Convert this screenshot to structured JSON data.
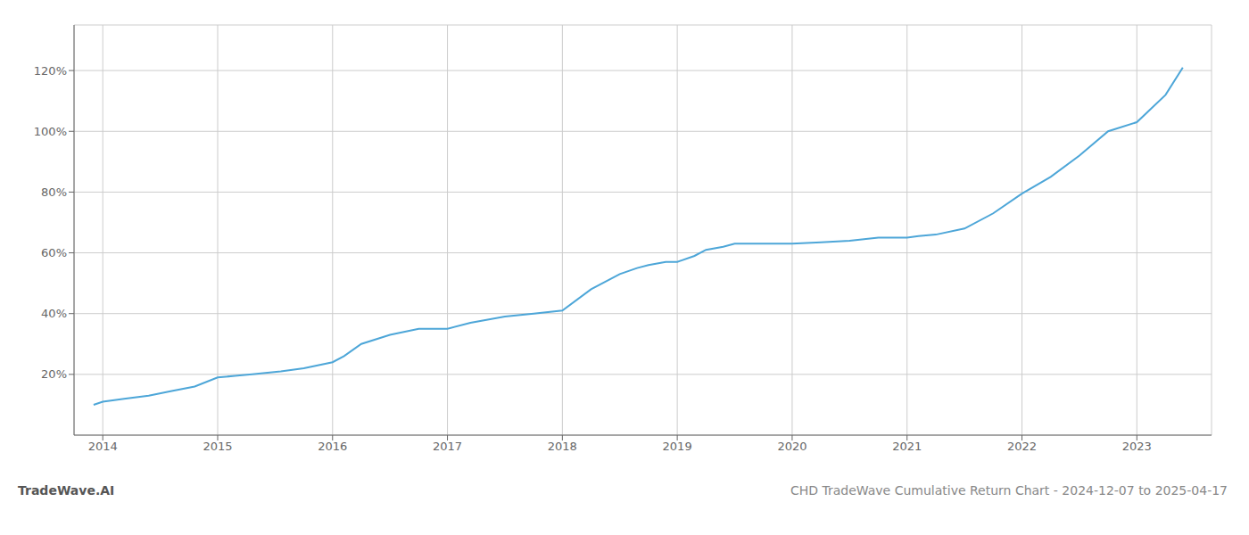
{
  "chart_data": {
    "type": "line",
    "title": "CHD TradeWave Cumulative Return Chart - 2024-12-07 to 2025-04-17",
    "annotations": [
      "TradeWave.AI"
    ],
    "x": [
      2013.92,
      2014.0,
      2014.1,
      2014.2,
      2014.4,
      2014.6,
      2014.8,
      2015.0,
      2015.15,
      2015.3,
      2015.55,
      2015.75,
      2016.0,
      2016.1,
      2016.25,
      2016.5,
      2016.75,
      2017.0,
      2017.2,
      2017.5,
      2017.75,
      2018.0,
      2018.25,
      2018.5,
      2018.65,
      2018.75,
      2018.9,
      2019.0,
      2019.15,
      2019.25,
      2019.4,
      2019.5,
      2019.75,
      2020.0,
      2020.25,
      2020.5,
      2020.75,
      2021.0,
      2021.1,
      2021.25,
      2021.5,
      2021.75,
      2022.0,
      2022.25,
      2022.5,
      2022.75,
      2023.0,
      2023.25,
      2023.4
    ],
    "values": [
      10,
      11,
      11.5,
      12,
      13,
      14.5,
      16,
      19,
      19.5,
      20,
      21,
      22,
      24,
      26,
      30,
      33,
      35,
      35,
      37,
      39,
      40,
      41,
      48,
      53,
      55,
      56,
      57,
      57,
      59,
      61,
      62,
      63,
      63,
      63,
      63.5,
      64,
      65,
      65,
      65.5,
      66,
      68,
      73,
      79.5,
      85,
      92,
      100,
      103,
      112,
      121
    ],
    "color": "#4da6d8",
    "xlim": [
      2013.75,
      2023.65
    ],
    "ylim": [
      0,
      135
    ],
    "xticks": [
      2014,
      2015,
      2016,
      2017,
      2018,
      2019,
      2020,
      2021,
      2022,
      2023
    ],
    "yticks": [
      {
        "value": 20,
        "label": "20%"
      },
      {
        "value": 40,
        "label": "40%"
      },
      {
        "value": 60,
        "label": "60%"
      },
      {
        "value": 80,
        "label": "80%"
      },
      {
        "value": 100,
        "label": "100%"
      },
      {
        "value": 120,
        "label": "120%"
      }
    ],
    "grid": true
  }
}
